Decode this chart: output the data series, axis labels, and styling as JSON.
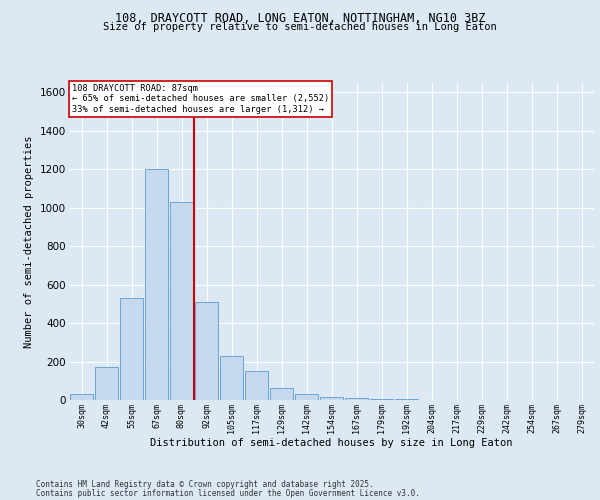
{
  "title_line1": "108, DRAYCOTT ROAD, LONG EATON, NOTTINGHAM, NG10 3BZ",
  "title_line2": "Size of property relative to semi-detached houses in Long Eaton",
  "xlabel": "Distribution of semi-detached houses by size in Long Eaton",
  "ylabel": "Number of semi-detached properties",
  "annotation_title": "108 DRAYCOTT ROAD: 87sqm",
  "annotation_line2": "← 65% of semi-detached houses are smaller (2,552)",
  "annotation_line3": "33% of semi-detached houses are larger (1,312) →",
  "footer_line1": "Contains HM Land Registry data © Crown copyright and database right 2025.",
  "footer_line2": "Contains public sector information licensed under the Open Government Licence v3.0.",
  "categories": [
    "30sqm",
    "42sqm",
    "55sqm",
    "67sqm",
    "80sqm",
    "92sqm",
    "105sqm",
    "117sqm",
    "129sqm",
    "142sqm",
    "154sqm",
    "167sqm",
    "179sqm",
    "192sqm",
    "204sqm",
    "217sqm",
    "229sqm",
    "242sqm",
    "254sqm",
    "267sqm",
    "279sqm"
  ],
  "values": [
    30,
    170,
    530,
    1200,
    1030,
    510,
    230,
    150,
    60,
    30,
    15,
    10,
    5,
    3,
    2,
    1,
    0,
    0,
    0,
    0,
    0
  ],
  "bar_color": "#c5d8ed",
  "bar_edge_color": "#5b9bd5",
  "property_line_index": 4.5,
  "property_line_color": "#cc0000",
  "ylim": [
    0,
    1650
  ],
  "yticks": [
    0,
    200,
    400,
    600,
    800,
    1000,
    1200,
    1400,
    1600
  ],
  "background_color": "#dce9f5",
  "plot_bg_color": "#dce9f5",
  "grid_color": "#ffffff",
  "annotation_box_color": "#ffffff",
  "annotation_box_edge": "#cc0000"
}
